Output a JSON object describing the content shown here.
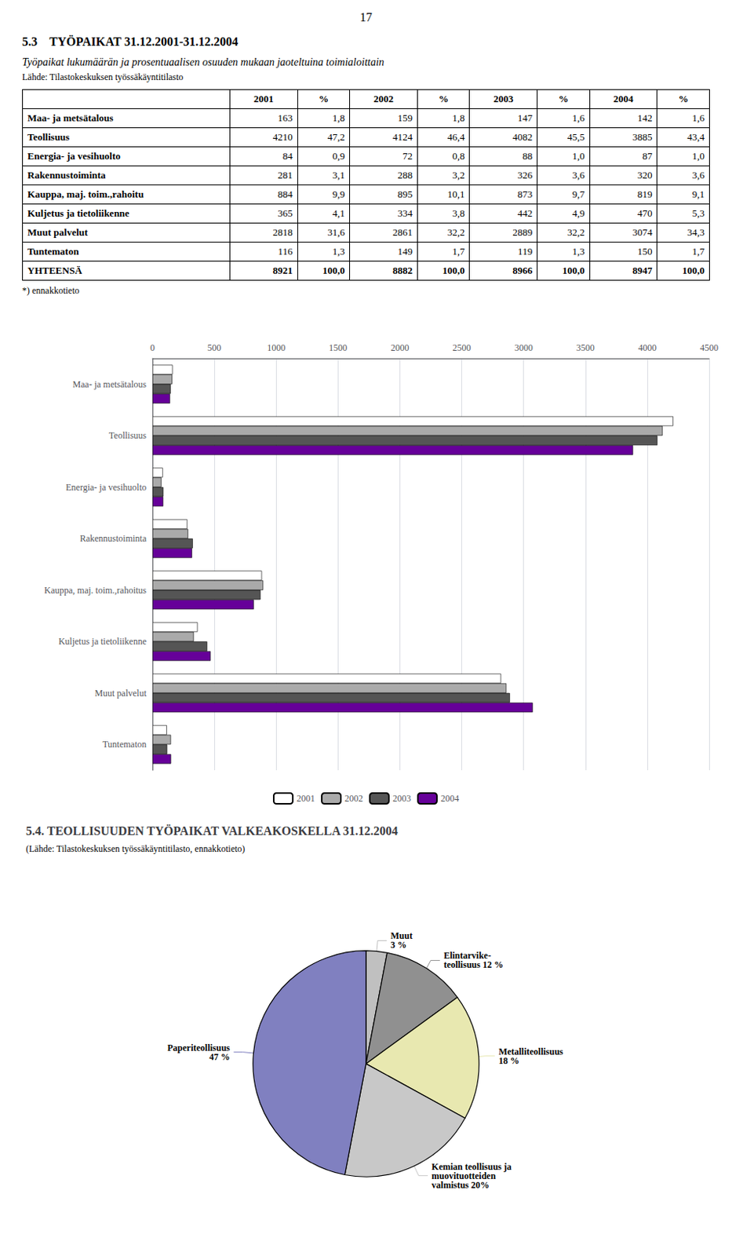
{
  "chart_data": [
    {
      "type": "table",
      "title": "Työpaikat lukumäärän ja prosentuaalisen osuuden mukaan jaoteltuina toimialoittain",
      "subtitle": "Lähde: Tilastokeskuksen työssäkäyntitilasto",
      "annotations": [
        "17",
        "5.3    TYÖPAIKAT 31.12.2001-31.12.2004",
        "*) ennakkotieto"
      ],
      "columns": [
        "",
        "2001",
        "%",
        "2002",
        "%",
        "2003",
        "%",
        "2004",
        "%"
      ],
      "rows": [
        [
          "Maa- ja metsätalous",
          "163",
          "1,8",
          "159",
          "1,8",
          "147",
          "1,6",
          "142",
          "1,6"
        ],
        [
          "Teollisuus",
          "4210",
          "47,2",
          "4124",
          "46,4",
          "4082",
          "45,5",
          "3885",
          "43,4"
        ],
        [
          "Energia- ja vesihuolto",
          "84",
          "0,9",
          "72",
          "0,8",
          "88",
          "1,0",
          "87",
          "1,0"
        ],
        [
          "Rakennustoiminta",
          "281",
          "3,1",
          "288",
          "3,2",
          "326",
          "3,6",
          "320",
          "3,6"
        ],
        [
          "Kauppa, maj. toim.,rahoitu",
          "884",
          "9,9",
          "895",
          "10,1",
          "873",
          "9,7",
          "819",
          "9,1"
        ],
        [
          "Kuljetus ja tietoliikenne",
          "365",
          "4,1",
          "334",
          "3,8",
          "442",
          "4,9",
          "470",
          "5,3"
        ],
        [
          "Muut palvelut",
          "2818",
          "31,6",
          "2861",
          "32,2",
          "2889",
          "32,2",
          "3074",
          "34,3"
        ],
        [
          "Tuntematon",
          "116",
          "1,3",
          "149",
          "1,7",
          "119",
          "1,3",
          "150",
          "1,7"
        ],
        [
          "YHTEENSÄ",
          "8921",
          "100,0",
          "8882",
          "100,0",
          "8966",
          "100,0",
          "8947",
          "100,0"
        ]
      ]
    },
    {
      "type": "bar",
      "orientation": "horizontal",
      "categories": [
        "Maa- ja metsätalous",
        "Teollisuus",
        "Energia- ja vesihuolto",
        "Rakennustoiminta",
        "Kauppa, maj. toim.,rahoitus",
        "Kuljetus ja tietoliikenne",
        "Muut palvelut",
        "Tuntematon"
      ],
      "series": [
        {
          "name": "2001",
          "color": "#ffffff",
          "values": [
            163,
            4210,
            84,
            281,
            884,
            365,
            2818,
            116
          ]
        },
        {
          "name": "2002",
          "color": "#aaaaaa",
          "values": [
            159,
            4124,
            72,
            288,
            895,
            334,
            2861,
            149
          ]
        },
        {
          "name": "2003",
          "color": "#555555",
          "values": [
            147,
            4082,
            88,
            326,
            873,
            442,
            2889,
            119
          ]
        },
        {
          "name": "2004",
          "color": "#660099",
          "values": [
            142,
            3885,
            87,
            320,
            819,
            470,
            3074,
            150
          ]
        }
      ],
      "xlim": [
        0,
        4500
      ],
      "xticks": [
        0,
        500,
        1000,
        1500,
        2000,
        2500,
        3000,
        3500,
        4000,
        4500
      ],
      "grid": true,
      "legend": "bottom"
    },
    {
      "type": "pie",
      "title": "5.4. TEOLLISUUDEN TYÖPAIKAT VALKEAKOSKELLA 31.12.2004",
      "subtitle": "(Lähde: Tilastokeskuksen työssäkäyntitilasto, ennakkotieto)",
      "categories": [
        "Muut\n3 %",
        "Elintarvike-\nteollisuus 12 %",
        "Metalliteollisuus\n18 %",
        "Kemian teollisuus ja\nmuovituotteiden\nvalmistus 20%",
        "Paperiteollisuus\n47 %"
      ],
      "values": [
        3,
        12,
        18,
        20,
        47
      ],
      "colors": [
        "#c0c0c0",
        "#909090",
        "#e8e8b0",
        "#c8c8c8",
        "#8080c0"
      ]
    }
  ]
}
